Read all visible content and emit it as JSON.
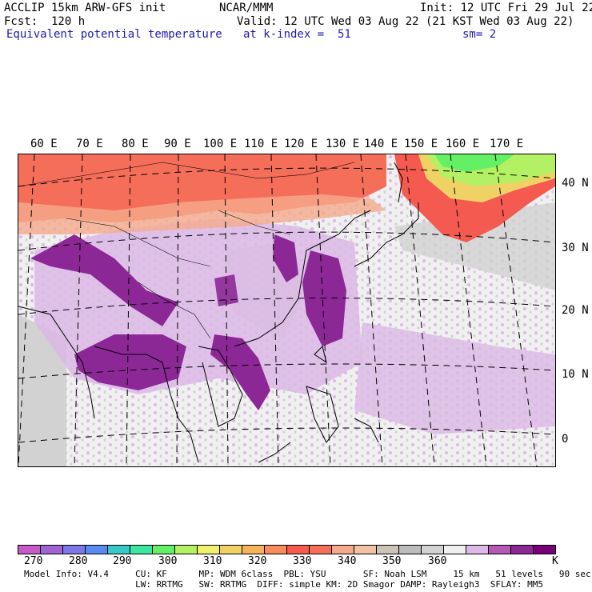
{
  "header": {
    "left1": "ACCLIP 15km ARW-GFS init",
    "left2": "Fcst:  120 h",
    "left3": "Equivalent potential temperature",
    "center1": "NCAR/MMM",
    "right1": "Init: 12 UTC Fri 29 Jul 22",
    "right2": "Valid: 12 UTC Wed 03 Aug 22 (21 KST Wed 03 Aug 22)",
    "level": "at k-index =  51",
    "smooth": "sm= 2"
  },
  "map": {
    "lon_labels": [
      "60 E",
      "70 E",
      "80 E",
      "90 E",
      "100 E",
      "110 E",
      "120 E",
      "130 E",
      "140 E",
      "150 E",
      "160 E",
      "170 E"
    ],
    "lat_labels": [
      "40 N",
      "30 N",
      "20 N",
      "10 N",
      "0"
    ]
  },
  "colorbar": {
    "colors": [
      "#c85ac8",
      "#a064d2",
      "#7e78e6",
      "#5a8cf0",
      "#38c8c8",
      "#3ce6a0",
      "#64f064",
      "#b4f064",
      "#f0f06e",
      "#f0d264",
      "#f5b45a",
      "#f58c5a",
      "#f55a50",
      "#f56e5a",
      "#f5aa8c",
      "#f0c3a5",
      "#cdc3b9",
      "#bcbcbc",
      "#d2d2d2",
      "#f0f0f0",
      "#dcb9e6",
      "#b45ab4",
      "#8c2896",
      "#780078"
    ],
    "ticks": [
      "270",
      "280",
      "290",
      "300",
      "310",
      "320",
      "330",
      "340",
      "350",
      "360"
    ],
    "unit": "K"
  },
  "footer": {
    "line1": "Model Info: V4.4     CU: KF      MP: WDM 6class  PBL: YSU       SF: Noah LSM     15 km   51 levels   90 sec",
    "line2": "                     LW: RRTMG   SW: RRTMG  DIFF: simple KM: 2D Smagor DAMP: Rayleigh3  SFLAY: MM5"
  }
}
